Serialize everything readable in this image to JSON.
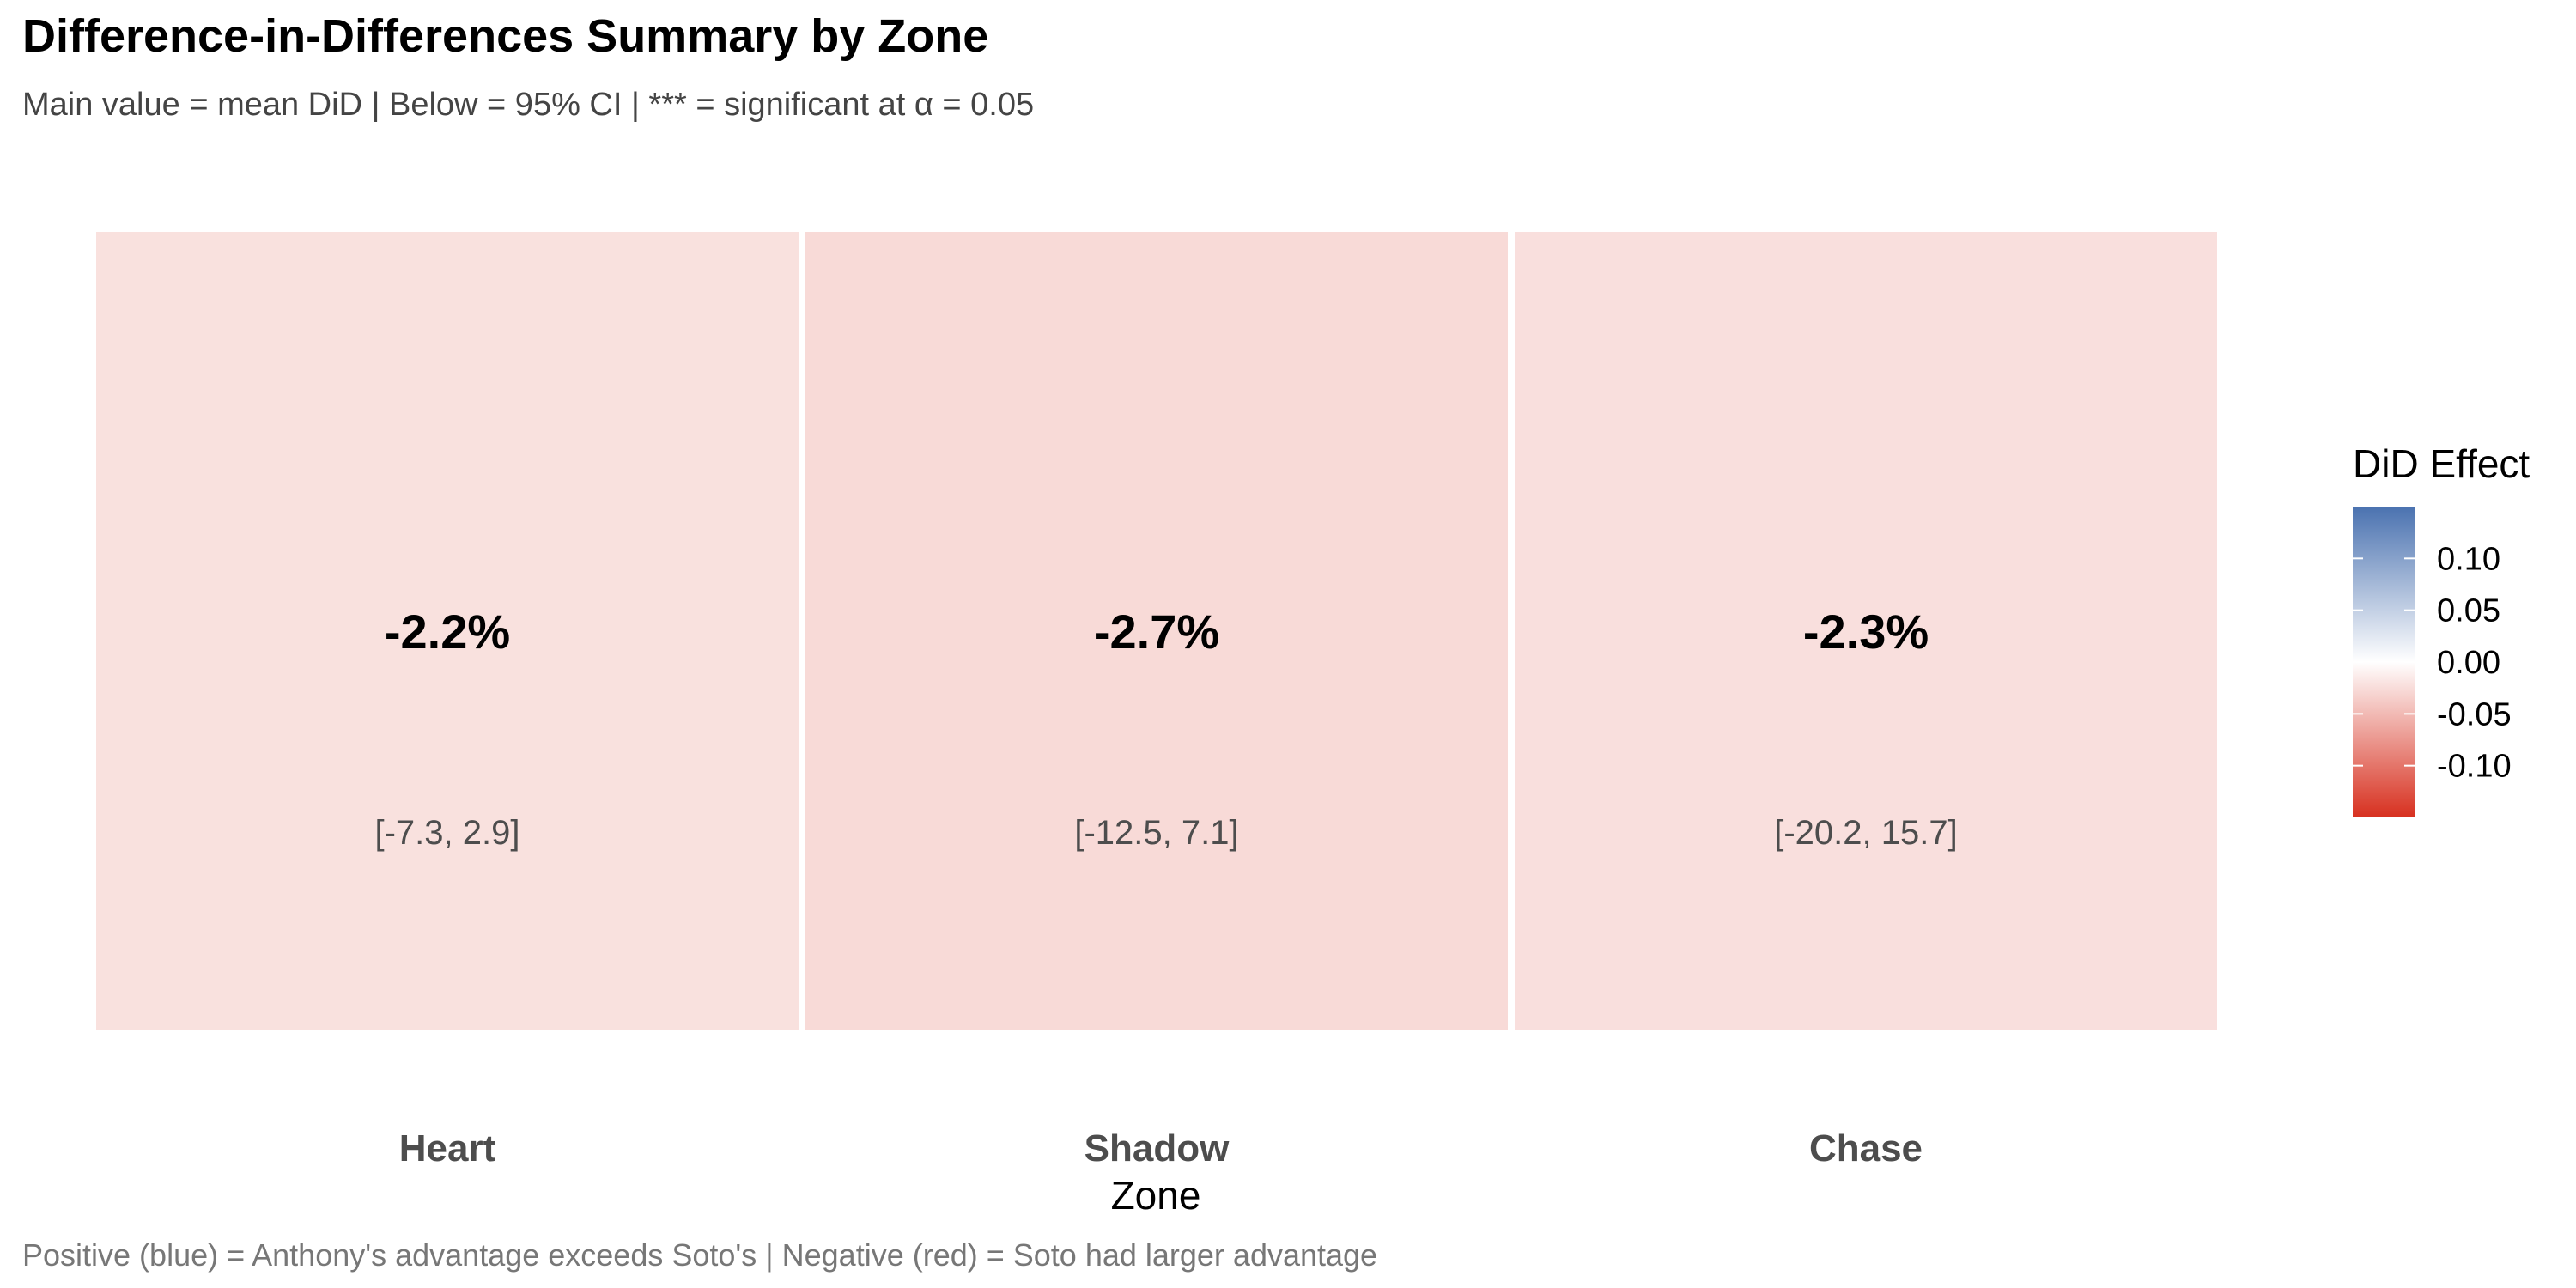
{
  "chart_data": {
    "type": "heatmap",
    "title": "Difference-in-Differences Summary by Zone",
    "subtitle": "Main value = mean DiD | Below = 95% CI | *** = significant at α = 0.05",
    "caption": "Positive (blue) = Anthony's advantage exceeds Soto's | Negative (red) = Soto had larger advantage",
    "xlabel": "Zone",
    "categories": [
      "Heart",
      "Shadow",
      "Chase"
    ],
    "values": [
      -0.022,
      -0.027,
      -0.023
    ],
    "value_labels": [
      "-2.2%",
      "-2.7%",
      "-2.3%"
    ],
    "ci_labels": [
      "[-7.3, 2.9]",
      "[-12.5, 7.1]",
      "[-20.2, 15.7]"
    ],
    "legend": {
      "title": "DiD Effect",
      "placement": "right",
      "range": [
        -0.15,
        0.15
      ],
      "ticks": [
        0.1,
        0.05,
        0.0,
        -0.05,
        -0.1
      ],
      "tick_labels": [
        "0.10",
        "0.05",
        "0.00",
        "-0.05",
        "-0.10"
      ],
      "colors": {
        "low": "#d7301f",
        "mid": "#ffffff",
        "high": "#4a72b0"
      }
    },
    "grid": false
  }
}
